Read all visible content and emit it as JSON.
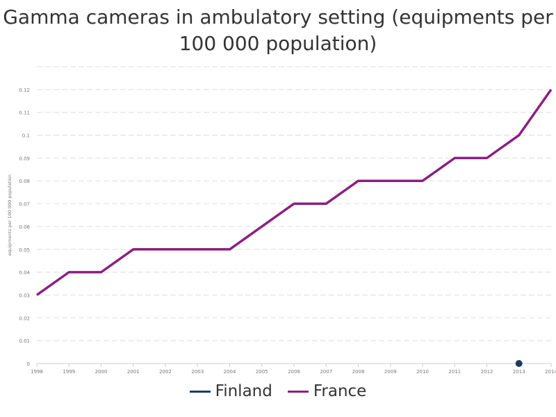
{
  "chart_data": {
    "type": "line",
    "title": "Gamma cameras in ambulatory setting (equipments per 100 000 population)",
    "ylabel": "equipments per 100 000 population",
    "xlabel": "",
    "x": [
      "1998",
      "1999",
      "2000",
      "2001",
      "2002",
      "2003",
      "2004",
      "2005",
      "2006",
      "2007",
      "2008",
      "2009",
      "2010",
      "2011",
      "2012",
      "2013",
      "2014"
    ],
    "ylim": [
      0,
      0.12
    ],
    "yticks": [
      "0",
      "0.01",
      "0.02",
      "0.03",
      "0.04",
      "0.05",
      "0.06",
      "0.07",
      "0.08",
      "0.09",
      "0.1",
      "0.11",
      "0.12"
    ],
    "grid": true,
    "legend_position": "bottom-center",
    "series": [
      {
        "name": "Finland",
        "color": "#1f3a5f",
        "values": [
          null,
          null,
          null,
          null,
          null,
          null,
          null,
          null,
          null,
          null,
          null,
          null,
          null,
          null,
          null,
          0,
          null
        ]
      },
      {
        "name": "France",
        "color": "#8b1f7f",
        "values": [
          0.03,
          0.04,
          0.04,
          0.05,
          0.05,
          0.05,
          0.05,
          0.06,
          0.07,
          0.07,
          0.08,
          0.08,
          0.08,
          0.09,
          0.09,
          0.1,
          0.12
        ]
      }
    ]
  }
}
